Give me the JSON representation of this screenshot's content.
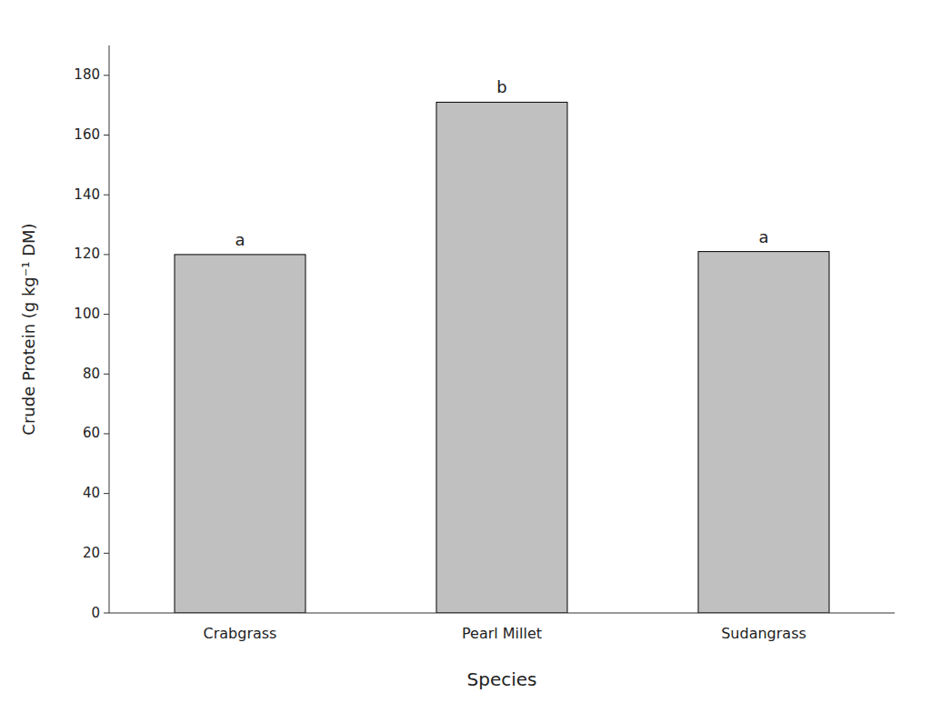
{
  "chart_data": {
    "type": "bar",
    "categories": [
      "Crabgrass",
      "Pearl Millet",
      "Sudangrass"
    ],
    "values": [
      120,
      171,
      121
    ],
    "color": "#c0c0c0",
    "annotations": [
      "a",
      "b",
      "a"
    ],
    "ylabel": "Crude Protein (g kg⁻¹ DM)",
    "xlabel": "Species",
    "ylim": [
      0,
      190
    ],
    "yticks": [
      0,
      20,
      40,
      60,
      80,
      100,
      120,
      140,
      160,
      180
    ],
    "grid": false
  }
}
